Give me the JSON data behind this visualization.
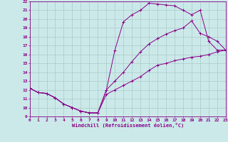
{
  "xlabel": "Windchill (Refroidissement éolien,°C)",
  "xlim": [
    0,
    23
  ],
  "ylim": [
    9,
    22
  ],
  "xticks": [
    0,
    1,
    2,
    3,
    4,
    5,
    6,
    7,
    8,
    9,
    10,
    11,
    12,
    13,
    14,
    15,
    16,
    17,
    18,
    19,
    20,
    21,
    22,
    23
  ],
  "yticks": [
    9,
    10,
    11,
    12,
    13,
    14,
    15,
    16,
    17,
    18,
    19,
    20,
    21,
    22
  ],
  "bg_color": "#cce9e9",
  "line_color": "#880088",
  "grid_color": "#aacccc",
  "curves": [
    {
      "x": [
        0,
        1,
        2,
        3,
        4,
        5,
        6,
        7,
        8,
        9,
        10,
        11,
        12,
        13,
        14,
        15,
        16,
        17,
        18,
        19,
        20,
        21,
        22,
        23
      ],
      "y": [
        12.2,
        11.7,
        11.6,
        11.1,
        10.4,
        10.0,
        9.6,
        9.4,
        9.4,
        12.0,
        16.5,
        19.7,
        20.5,
        21.0,
        21.8,
        21.7,
        21.6,
        21.5,
        21.0,
        20.5,
        21.0,
        17.5,
        16.5,
        16.5
      ]
    },
    {
      "x": [
        0,
        1,
        2,
        3,
        4,
        5,
        6,
        7,
        8,
        9,
        10,
        11,
        12,
        13,
        14,
        15,
        16,
        17,
        18,
        19,
        20,
        21,
        22,
        23
      ],
      "y": [
        12.2,
        11.7,
        11.6,
        11.1,
        10.4,
        10.0,
        9.6,
        9.4,
        9.4,
        12.0,
        13.0,
        14.0,
        15.2,
        16.3,
        17.2,
        17.8,
        18.3,
        18.7,
        19.0,
        19.8,
        18.4,
        18.0,
        17.5,
        16.5
      ]
    },
    {
      "x": [
        0,
        1,
        2,
        3,
        4,
        5,
        6,
        7,
        8,
        9,
        10,
        11,
        12,
        13,
        14,
        15,
        16,
        17,
        18,
        19,
        20,
        21,
        22,
        23
      ],
      "y": [
        12.2,
        11.7,
        11.6,
        11.1,
        10.4,
        10.0,
        9.6,
        9.4,
        9.4,
        11.5,
        12.0,
        12.5,
        13.0,
        13.5,
        14.2,
        14.8,
        15.0,
        15.3,
        15.5,
        15.7,
        15.8,
        16.0,
        16.3,
        16.5
      ]
    }
  ]
}
